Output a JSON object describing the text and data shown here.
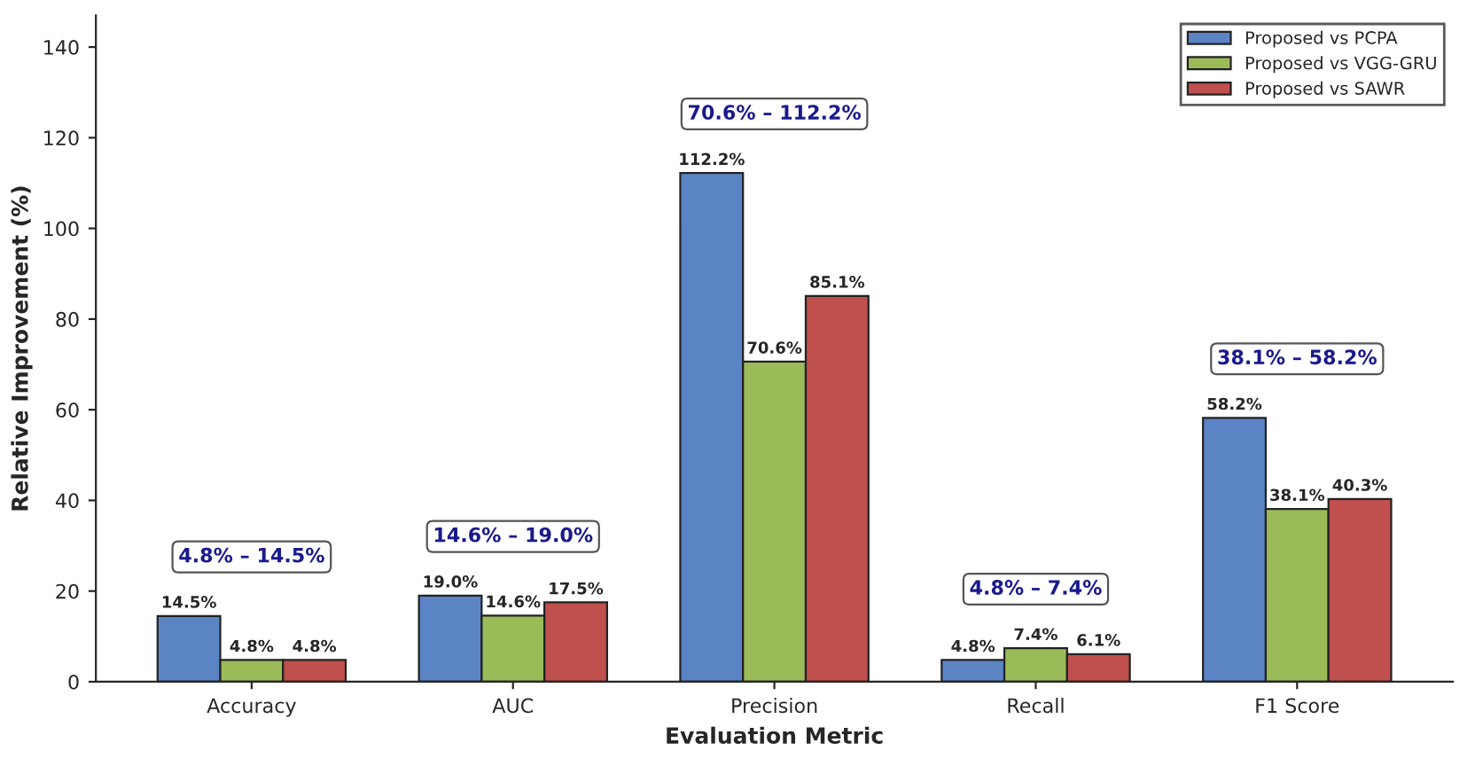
{
  "chart_data": {
    "type": "bar",
    "xlabel": "Evaluation Metric",
    "ylabel": "Relative Improvement (%)",
    "categories": [
      "Accuracy",
      "AUC",
      "Precision",
      "Recall",
      "F1 Score"
    ],
    "series": [
      {
        "name": "Proposed vs PCPA",
        "color": "#5b84c4",
        "values": [
          14.5,
          19.0,
          112.2,
          4.8,
          58.2
        ],
        "value_labels": [
          "14.5%",
          "19.0%",
          "112.2%",
          "4.8%",
          "58.2%"
        ]
      },
      {
        "name": "Proposed vs VGG-GRU",
        "color": "#9bbb59",
        "values": [
          4.8,
          14.6,
          70.6,
          7.4,
          38.1
        ],
        "value_labels": [
          "4.8%",
          "14.6%",
          "70.6%",
          "7.4%",
          "38.1%"
        ]
      },
      {
        "name": "Proposed vs SAWR",
        "color": "#c0504d",
        "values": [
          4.8,
          17.5,
          85.1,
          6.1,
          40.3
        ],
        "value_labels": [
          "4.8%",
          "17.5%",
          "85.1%",
          "6.1%",
          "40.3%"
        ]
      }
    ],
    "annotations": [
      "4.8% – 14.5%",
      "14.6% – 19.0%",
      "70.6% – 112.2%",
      "4.8% – 7.4%",
      "38.1% – 58.2%"
    ],
    "ylim": [
      0,
      147
    ],
    "yticks": [
      0,
      20,
      40,
      60,
      80,
      100,
      120,
      140
    ],
    "legend": "top right",
    "grid": false
  }
}
